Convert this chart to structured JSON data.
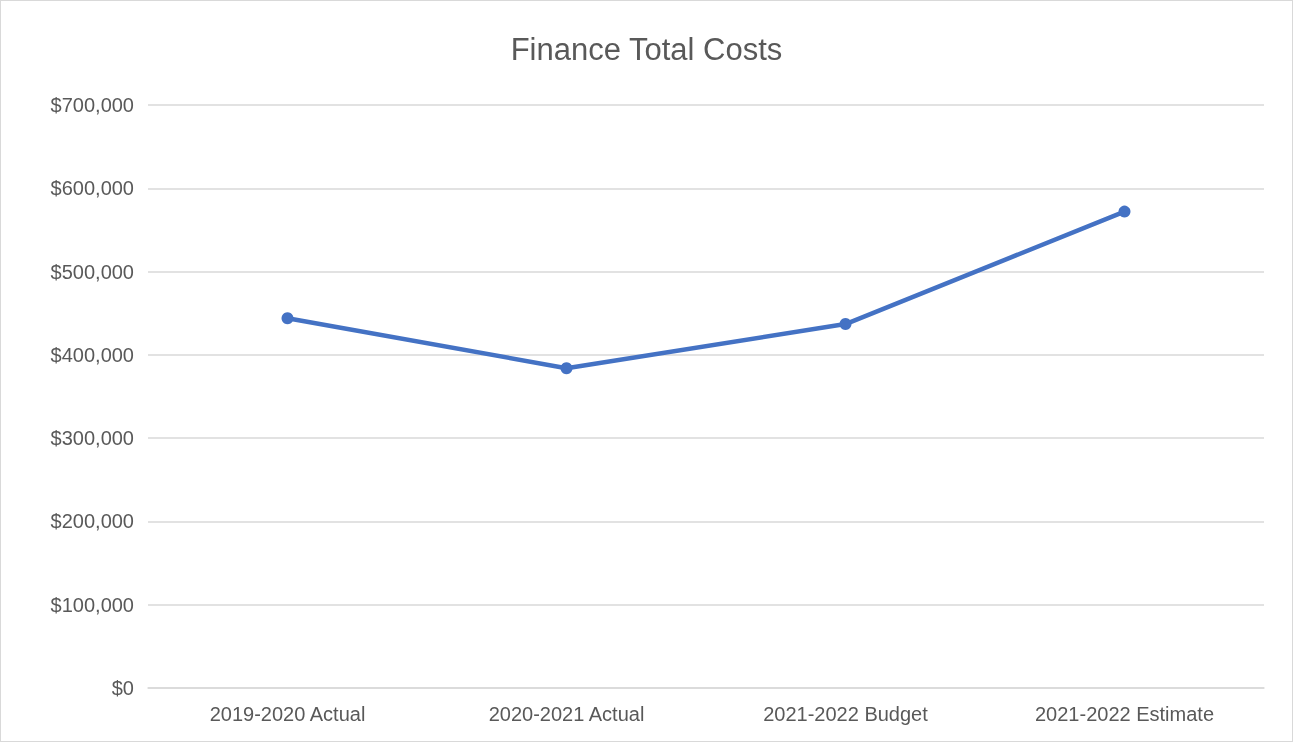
{
  "chart_data": {
    "type": "line",
    "title": "Finance Total Costs",
    "categories": [
      "2019-2020 Actual",
      "2020-2021 Actual",
      "2021-2022 Budget",
      "2021-2022 Estimate"
    ],
    "series": [
      {
        "color": "#4472c4",
        "values": [
          444000,
          384000,
          437000,
          572000
        ]
      }
    ],
    "ylim": [
      0,
      700000
    ],
    "yticks": [
      {
        "value": 0,
        "label": "$0"
      },
      {
        "value": 100000,
        "label": "$100,000"
      },
      {
        "value": 200000,
        "label": "$200,000"
      },
      {
        "value": 300000,
        "label": "$300,000"
      },
      {
        "value": 400000,
        "label": "$400,000"
      },
      {
        "value": 500000,
        "label": "$500,000"
      },
      {
        "value": 600000,
        "label": "$600,000"
      },
      {
        "value": 700000,
        "label": "$700,000"
      }
    ],
    "grid": "y",
    "marker": "circle",
    "line_style": "solid"
  }
}
